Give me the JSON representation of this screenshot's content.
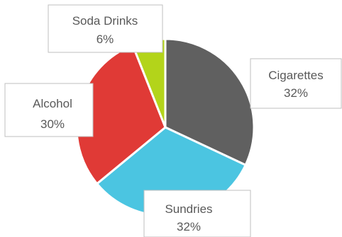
{
  "chart_data": {
    "type": "pie",
    "title": "",
    "slices": [
      {
        "name": "Cigarettes",
        "value": 32,
        "label": "32%",
        "color": "#606060"
      },
      {
        "name": "Sundries",
        "value": 32,
        "label": "32%",
        "color": "#4bc5e1"
      },
      {
        "name": "Alcohol",
        "value": 30,
        "label": "30%",
        "color": "#e03a36"
      },
      {
        "name": "Soda Drinks",
        "value": 6,
        "label": "6%",
        "color": "#b3d41a"
      }
    ],
    "legend": "none",
    "data_labels": "callouts with category name and percentage"
  }
}
